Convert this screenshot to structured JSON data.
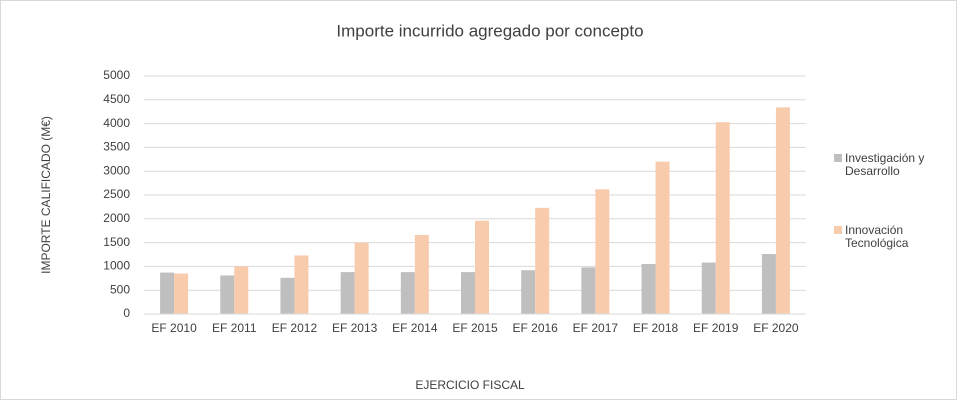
{
  "chart_data": {
    "type": "bar",
    "title": "Importe  incurrido  agregado  por  concepto",
    "x_label": "EJERCICIO FISCAL",
    "y_label": "IMPORTE CALIFICADO (M€)",
    "categories": [
      "EF 2010",
      "EF 2011",
      "EF 2012",
      "EF 2013",
      "EF 2014",
      "EF 2015",
      "EF 2016",
      "EF 2017",
      "EF 2018",
      "EF 2019",
      "EF 2020"
    ],
    "series": [
      {
        "name": "Investigación y Desarrollo",
        "color": "#bfbfbf",
        "values": [
          870,
          810,
          760,
          880,
          880,
          880,
          920,
          980,
          1050,
          1080,
          1260
        ]
      },
      {
        "name": "Innovación Tecnológica",
        "color": "#f8cbad",
        "values": [
          850,
          1000,
          1230,
          1500,
          1660,
          1960,
          2230,
          2620,
          3200,
          4030,
          4340
        ]
      }
    ],
    "ylim": [
      0,
      5000
    ],
    "yticks": [
      0,
      500,
      1000,
      1500,
      2000,
      2500,
      3000,
      3500,
      4000,
      4500,
      5000
    ],
    "grid": true,
    "legend": "right"
  }
}
